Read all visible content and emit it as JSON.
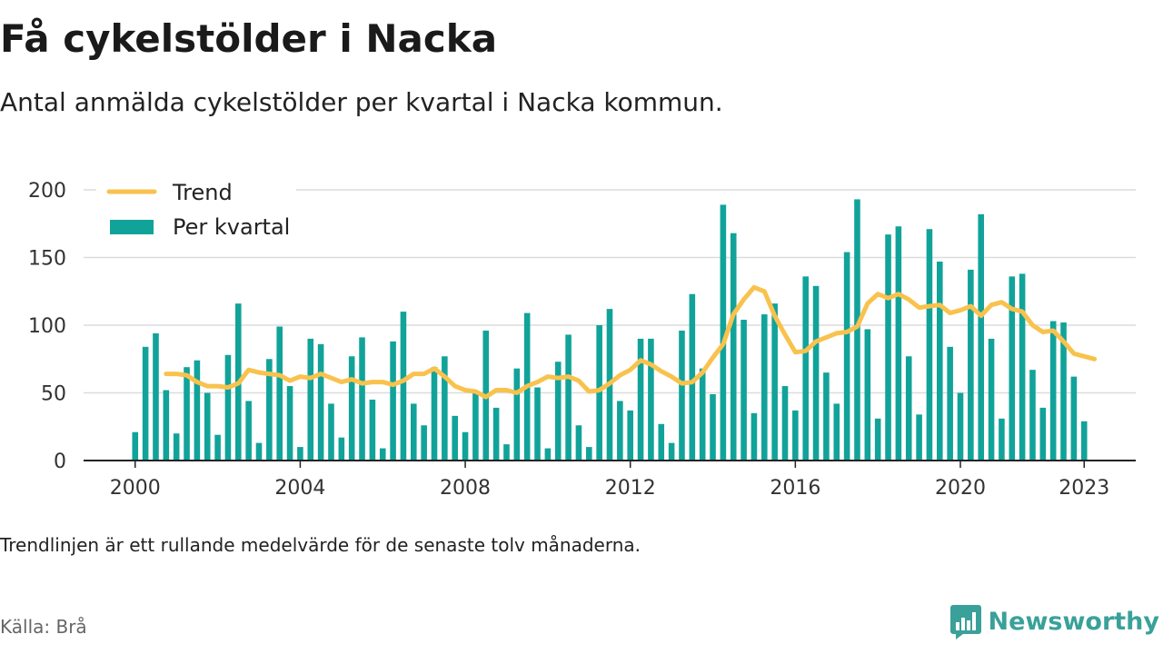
{
  "title": "Få cykelstölder i Nacka",
  "subtitle": "Antal anmälda cykelstölder per kvartal i Nacka kommun.",
  "footnote": "Trendlinjen är ett rullande medelvärde för de senaste tolv månaderna.",
  "source": "Källa: Brå",
  "brand": {
    "name": "Newsworthy",
    "icon": "newsworthy-logo-icon",
    "color": "#3aa19a"
  },
  "colors": {
    "bars": "#11a39a",
    "trend": "#f8c24d",
    "grid": "#dcdcdc",
    "axis": "#222222"
  },
  "chart_data": {
    "type": "bar",
    "y_ticks": [
      0,
      50,
      100,
      150,
      200
    ],
    "ylim": [
      0,
      200
    ],
    "x_ticks": [
      {
        "label": "2000",
        "x": 2000.0
      },
      {
        "label": "2004",
        "x": 2004.0
      },
      {
        "label": "2008",
        "x": 2008.0
      },
      {
        "label": "2012",
        "x": 2012.0
      },
      {
        "label": "2016",
        "x": 2016.0
      },
      {
        "label": "2020",
        "x": 2020.0
      },
      {
        "label": "2023",
        "x": 2023.0
      }
    ],
    "x_range": [
      1998.75,
      2024.25
    ],
    "grid": true,
    "legend_position": "top-left",
    "series": [
      {
        "name": "Per kvartal",
        "kind": "bar",
        "start_year": 2000,
        "values": [
          21,
          84,
          94,
          52,
          20,
          69,
          74,
          50,
          19,
          78,
          116,
          44,
          13,
          75,
          99,
          55,
          10,
          90,
          86,
          42,
          17,
          77,
          91,
          45,
          9,
          88,
          110,
          42,
          26,
          69,
          77,
          33,
          21,
          51,
          96,
          39,
          12,
          68,
          109,
          54,
          9,
          73,
          93,
          26,
          10,
          100,
          112,
          44,
          37,
          90,
          90,
          27,
          13,
          96,
          123,
          68,
          49,
          189,
          168,
          104,
          35,
          108,
          116,
          55,
          37,
          136,
          129,
          65,
          42,
          154,
          193,
          97,
          31,
          167,
          173,
          77,
          34,
          171,
          147,
          84,
          50,
          141,
          182,
          90,
          31,
          136,
          138,
          67,
          39,
          103,
          102,
          62,
          29
        ]
      },
      {
        "name": "Trend",
        "kind": "line",
        "points": [
          [
            2000.75,
            64
          ],
          [
            2001.0,
            64
          ],
          [
            2001.25,
            63
          ],
          [
            2001.5,
            58
          ],
          [
            2001.75,
            55
          ],
          [
            2002.0,
            55
          ],
          [
            2002.25,
            54
          ],
          [
            2002.5,
            57
          ],
          [
            2002.75,
            67
          ],
          [
            2003.0,
            65
          ],
          [
            2003.25,
            64
          ],
          [
            2003.5,
            63
          ],
          [
            2003.75,
            59
          ],
          [
            2004.0,
            62
          ],
          [
            2004.25,
            61
          ],
          [
            2004.5,
            64
          ],
          [
            2004.75,
            61
          ],
          [
            2005.0,
            58
          ],
          [
            2005.25,
            60
          ],
          [
            2005.5,
            57
          ],
          [
            2005.75,
            58
          ],
          [
            2006.0,
            58
          ],
          [
            2006.25,
            56
          ],
          [
            2006.5,
            59
          ],
          [
            2006.75,
            64
          ],
          [
            2007.0,
            64
          ],
          [
            2007.25,
            68
          ],
          [
            2007.5,
            62
          ],
          [
            2007.75,
            55
          ],
          [
            2008.0,
            52
          ],
          [
            2008.25,
            51
          ],
          [
            2008.5,
            47
          ],
          [
            2008.75,
            52
          ],
          [
            2009.0,
            52
          ],
          [
            2009.25,
            50
          ],
          [
            2009.5,
            55
          ],
          [
            2009.75,
            58
          ],
          [
            2010.0,
            62
          ],
          [
            2010.25,
            61
          ],
          [
            2010.5,
            62
          ],
          [
            2010.75,
            59
          ],
          [
            2011.0,
            51
          ],
          [
            2011.25,
            52
          ],
          [
            2011.5,
            57
          ],
          [
            2011.75,
            63
          ],
          [
            2012.0,
            67
          ],
          [
            2012.25,
            74
          ],
          [
            2012.5,
            71
          ],
          [
            2012.75,
            66
          ],
          [
            2013.0,
            62
          ],
          [
            2013.25,
            57
          ],
          [
            2013.5,
            58
          ],
          [
            2013.75,
            65
          ],
          [
            2014.0,
            76
          ],
          [
            2014.25,
            86
          ],
          [
            2014.5,
            108
          ],
          [
            2014.75,
            119
          ],
          [
            2015.0,
            128
          ],
          [
            2015.25,
            125
          ],
          [
            2015.5,
            107
          ],
          [
            2015.75,
            93
          ],
          [
            2016.0,
            80
          ],
          [
            2016.25,
            81
          ],
          [
            2016.5,
            88
          ],
          [
            2016.75,
            91
          ],
          [
            2017.0,
            94
          ],
          [
            2017.25,
            95
          ],
          [
            2017.5,
            99
          ],
          [
            2017.75,
            116
          ],
          [
            2018.0,
            123
          ],
          [
            2018.25,
            120
          ],
          [
            2018.5,
            123
          ],
          [
            2018.75,
            119
          ],
          [
            2019.0,
            113
          ],
          [
            2019.25,
            114
          ],
          [
            2019.5,
            115
          ],
          [
            2019.75,
            109
          ],
          [
            2020.0,
            111
          ],
          [
            2020.25,
            114
          ],
          [
            2020.5,
            107
          ],
          [
            2020.75,
            115
          ],
          [
            2021.0,
            117
          ],
          [
            2021.25,
            112
          ],
          [
            2021.5,
            110
          ],
          [
            2021.75,
            100
          ],
          [
            2022.0,
            95
          ],
          [
            2022.25,
            96
          ],
          [
            2022.5,
            88
          ],
          [
            2022.75,
            79
          ],
          [
            2023.0,
            77
          ],
          [
            2023.25,
            75
          ]
        ]
      }
    ]
  }
}
